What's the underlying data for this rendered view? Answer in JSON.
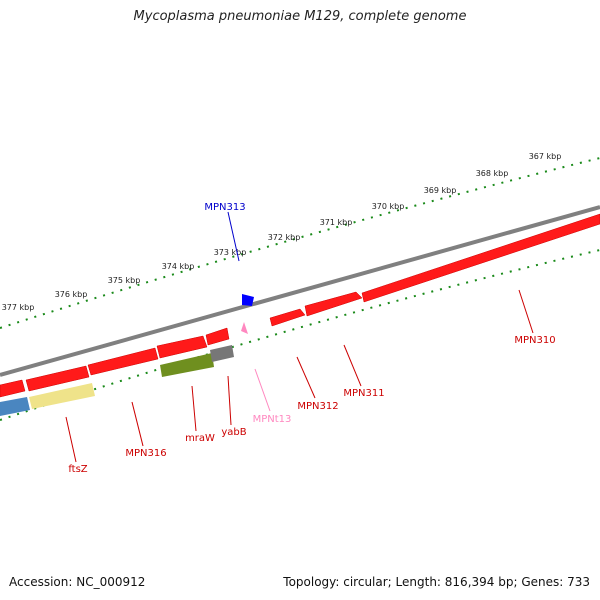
{
  "title": "Mycoplasma pneumoniae M129, complete genome",
  "footer": {
    "accession": "Accession: NC_000912",
    "summary": "Topology: circular; Length: 816,394 bp; Genes: 733"
  },
  "colors": {
    "gene_forward": "#ff0000",
    "gene_label": "#cc0000",
    "backbone": "#808080",
    "tick": "#1a8a1a",
    "blue_marker": "#0000ff",
    "blue_label": "#0000cc",
    "pink": "#ff88c0"
  },
  "ruler": {
    "labels": [
      "377 kbp",
      "376 kbp",
      "375 kbp",
      "374 kbp",
      "373 kbp",
      "372 kbp",
      "371 kbp",
      "370 kbp",
      "369 kbp",
      "368 kbp",
      "367 kbp"
    ]
  },
  "gene_labels": [
    {
      "name": "MPN313",
      "color": "#0000cc"
    },
    {
      "name": "MPN310",
      "color": "#cc0000"
    },
    {
      "name": "MPN311",
      "color": "#cc0000"
    },
    {
      "name": "MPN312",
      "color": "#cc0000"
    },
    {
      "name": "MPNt13",
      "color": "#ff88c0"
    },
    {
      "name": "yabB",
      "color": "#cc0000"
    },
    {
      "name": "mraW",
      "color": "#cc0000"
    },
    {
      "name": "MPN316",
      "color": "#cc0000"
    },
    {
      "name": "ftsZ",
      "color": "#cc0000"
    }
  ]
}
